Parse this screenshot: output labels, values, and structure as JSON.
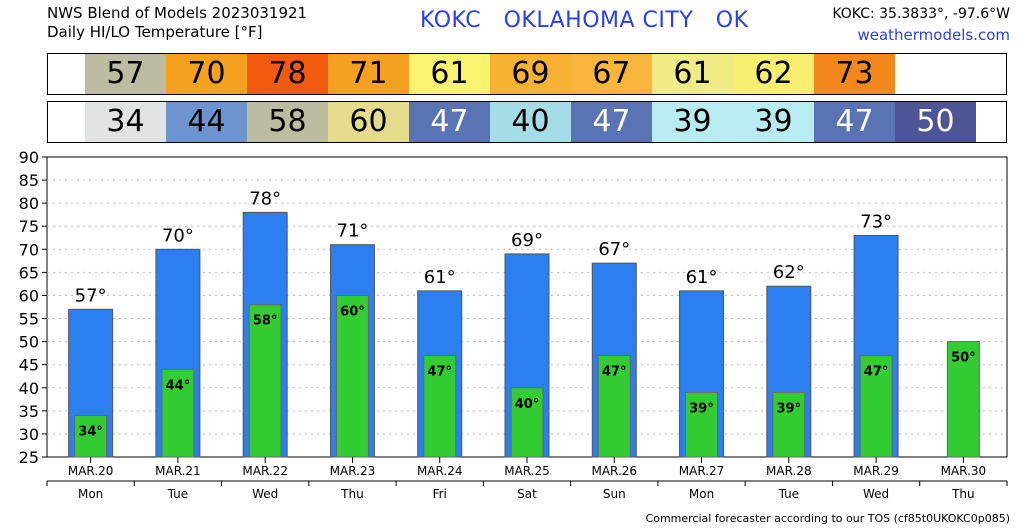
{
  "header": {
    "title_line1": "NWS Blend of Models 2023031921",
    "title_line2": "Daily HI/LO Temperature [°F]",
    "station": "KOKC   OKLAHOMA CITY   OK",
    "coords": "KOKC: 35.3833°, -97.6°W",
    "site": "weathermodels.com"
  },
  "footer": "Commercial forecaster according to our TOS (cf85t0UKOKC0p085)",
  "hi_strip": [
    {
      "value": "57",
      "color": "#bdbca0"
    },
    {
      "value": "70",
      "color": "#f6a020"
    },
    {
      "value": "78",
      "color": "#f25a10"
    },
    {
      "value": "71",
      "color": "#f6a020"
    },
    {
      "value": "61",
      "color": "#fcf46e"
    },
    {
      "value": "69",
      "color": "#f7b234"
    },
    {
      "value": "67",
      "color": "#f8b73c"
    },
    {
      "value": "61",
      "color": "#efec86"
    },
    {
      "value": "62",
      "color": "#f8ee70"
    },
    {
      "value": "73",
      "color": "#f5881c"
    }
  ],
  "lo_strip": [
    {
      "value": "34",
      "color": "#e2e3e3",
      "text_color": "#000000"
    },
    {
      "value": "44",
      "color": "#6d94cc",
      "text_color": "#000000"
    },
    {
      "value": "58",
      "color": "#bdbca0",
      "text_color": "#000000"
    },
    {
      "value": "60",
      "color": "#e4dc8c",
      "text_color": "#000000"
    },
    {
      "value": "47",
      "color": "#5a73b2",
      "text_color": "#ffffff"
    },
    {
      "value": "40",
      "color": "#a4dde8",
      "text_color": "#000000"
    },
    {
      "value": "47",
      "color": "#5a73b2",
      "text_color": "#ffffff"
    },
    {
      "value": "39",
      "color": "#b8ecf0",
      "text_color": "#000000"
    },
    {
      "value": "39",
      "color": "#b8ecf0",
      "text_color": "#000000"
    },
    {
      "value": "47",
      "color": "#5a73b2",
      "text_color": "#ffffff"
    },
    {
      "value": "50",
      "color": "#4d5597",
      "text_color": "#ffffff"
    }
  ],
  "chart_data": {
    "type": "bar",
    "categories": [
      "MAR.20",
      "MAR.21",
      "MAR.22",
      "MAR.23",
      "MAR.24",
      "MAR.25",
      "MAR.26",
      "MAR.27",
      "MAR.28",
      "MAR.29",
      "MAR.30"
    ],
    "weekdays": [
      "Mon",
      "Tue",
      "Wed",
      "Thu",
      "Fri",
      "Sat",
      "Sun",
      "Mon",
      "Tue",
      "Wed",
      "Thu"
    ],
    "series": [
      {
        "name": "",
        "color": "#2b7ff0",
        "values": [
          57,
          70,
          78,
          71,
          61,
          69,
          67,
          61,
          62,
          73,
          null
        ]
      },
      {
        "name": "",
        "color": "#33cc33",
        "values": [
          34,
          44,
          58,
          60,
          47,
          40,
          47,
          39,
          39,
          47,
          50
        ]
      }
    ],
    "hi_labels": [
      "57°",
      "70°",
      "78°",
      "71°",
      "61°",
      "69°",
      "67°",
      "61°",
      "62°",
      "73°",
      ""
    ],
    "lo_labels": [
      "34°",
      "44°",
      "58°",
      "60°",
      "47°",
      "40°",
      "47°",
      "39°",
      "39°",
      "47°",
      "50°"
    ],
    "yticks": [
      "25",
      "30",
      "35",
      "40",
      "45",
      "50",
      "55",
      "60",
      "65",
      "70",
      "75",
      "80",
      "85",
      "90"
    ],
    "ylim": [
      25,
      90
    ],
    "grid": true
  }
}
